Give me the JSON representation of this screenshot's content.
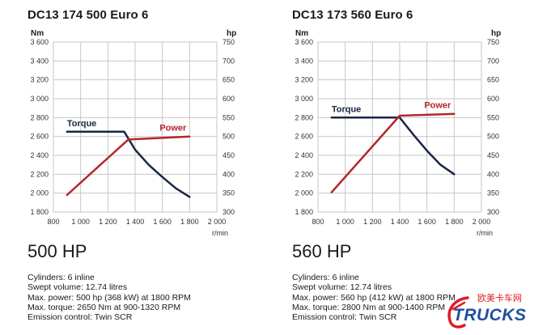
{
  "panels": [
    {
      "title": "DC13 174  500 Euro 6",
      "heading": "500 HP",
      "specs": [
        "Cylinders: 6 inline",
        "Swept volume: 12.74 litres",
        "Max. power: 500 hp (368 kW) at 1800 RPM",
        "Max. torque: 2650 Nm at 900-1320 RPM",
        "Emission control: Twin SCR"
      ]
    },
    {
      "title": "DC13 173  560 Euro 6",
      "heading": "560 HP",
      "specs": [
        "Cylinders: 6 inline",
        "Swept volume: 12.74 litres",
        "Max. power: 560 hp (412 kW) at 1800 RPM",
        "Max. torque: 2800 Nm at 900-1400 RPM",
        "Emission control: Twin SCR"
      ]
    }
  ],
  "logo": {
    "cn_text": "欧美卡车网",
    "word": "TRUCKS"
  },
  "chart_data": [
    {
      "type": "line",
      "title": "DC13 174  500 Euro 6",
      "xlabel": "r/min",
      "ylabel_left": "Nm",
      "ylabel_right": "hp",
      "xlim": [
        800,
        2000
      ],
      "ylim_left": [
        1800,
        3600
      ],
      "ylim_right": [
        300,
        750
      ],
      "x_ticks": [
        "800",
        "1 000",
        "1 200",
        "1 400",
        "1 600",
        "1 800",
        "2 000"
      ],
      "y_left_ticks": [
        "1 800",
        "2 000",
        "2 200",
        "2 400",
        "2 600",
        "2 800",
        "3 000",
        "3 200",
        "3 400",
        "3 600"
      ],
      "y_right_ticks": [
        "300",
        "350",
        "400",
        "450",
        "500",
        "550",
        "600",
        "650",
        "700",
        "750"
      ],
      "grid": true,
      "series": [
        {
          "name": "Torque",
          "axis": "left",
          "color": "#1a2744",
          "x": [
            900,
            1000,
            1100,
            1200,
            1320,
            1400,
            1500,
            1600,
            1700,
            1800
          ],
          "y": [
            2650,
            2650,
            2650,
            2650,
            2650,
            2460,
            2300,
            2170,
            2050,
            1960
          ]
        },
        {
          "name": "Power",
          "axis": "right",
          "color": "#b3262e",
          "x": [
            900,
            1350,
            1800
          ],
          "y": [
            345,
            492,
            500
          ]
        }
      ]
    },
    {
      "type": "line",
      "title": "DC13 173  560 Euro 6",
      "xlabel": "r/min",
      "ylabel_left": "Nm",
      "ylabel_right": "hp",
      "xlim": [
        800,
        2000
      ],
      "ylim_left": [
        1800,
        3600
      ],
      "ylim_right": [
        300,
        750
      ],
      "x_ticks": [
        "800",
        "1 000",
        "1 200",
        "1 400",
        "1 600",
        "1 800",
        "2 000"
      ],
      "y_left_ticks": [
        "1 800",
        "2 000",
        "2 200",
        "2 400",
        "2 600",
        "2 800",
        "3 000",
        "3 200",
        "3 400",
        "3 600"
      ],
      "y_right_ticks": [
        "300",
        "350",
        "400",
        "450",
        "500",
        "550",
        "600",
        "650",
        "700",
        "750"
      ],
      "grid": true,
      "series": [
        {
          "name": "Torque",
          "axis": "left",
          "color": "#1a2744",
          "x": [
            900,
            1000,
            1100,
            1200,
            1300,
            1400,
            1500,
            1600,
            1700,
            1800
          ],
          "y": [
            2800,
            2800,
            2800,
            2800,
            2800,
            2800,
            2620,
            2450,
            2300,
            2200
          ]
        },
        {
          "name": "Power",
          "axis": "right",
          "color": "#b3262e",
          "x": [
            900,
            1400,
            1800
          ],
          "y": [
            352,
            555,
            560
          ]
        }
      ]
    }
  ]
}
